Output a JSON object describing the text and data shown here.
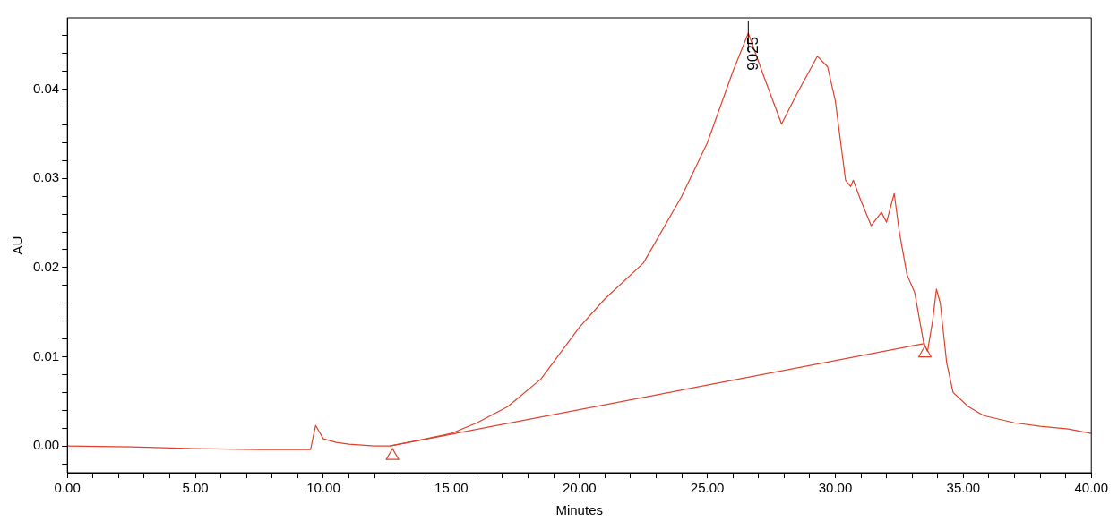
{
  "chart_data": {
    "type": "line",
    "xlabel": "Minutes",
    "ylabel": "AU",
    "xlim": [
      0,
      40
    ],
    "ylim": [
      -0.003,
      0.048
    ],
    "xticks": [
      {
        "value": 0,
        "label": "0.00"
      },
      {
        "value": 1,
        "label": null
      },
      {
        "value": 2,
        "label": null
      },
      {
        "value": 3,
        "label": null
      },
      {
        "value": 4,
        "label": null
      },
      {
        "value": 5,
        "label": "5.00"
      },
      {
        "value": 6,
        "label": null
      },
      {
        "value": 7,
        "label": null
      },
      {
        "value": 8,
        "label": null
      },
      {
        "value": 9,
        "label": null
      },
      {
        "value": 10,
        "label": "10.00"
      },
      {
        "value": 11,
        "label": null
      },
      {
        "value": 12,
        "label": null
      },
      {
        "value": 13,
        "label": null
      },
      {
        "value": 14,
        "label": null
      },
      {
        "value": 15,
        "label": "15.00"
      },
      {
        "value": 16,
        "label": null
      },
      {
        "value": 17,
        "label": null
      },
      {
        "value": 18,
        "label": null
      },
      {
        "value": 19,
        "label": null
      },
      {
        "value": 20,
        "label": "20.00"
      },
      {
        "value": 21,
        "label": null
      },
      {
        "value": 22,
        "label": null
      },
      {
        "value": 23,
        "label": null
      },
      {
        "value": 24,
        "label": null
      },
      {
        "value": 25,
        "label": "25.00"
      },
      {
        "value": 26,
        "label": null
      },
      {
        "value": 27,
        "label": null
      },
      {
        "value": 28,
        "label": null
      },
      {
        "value": 29,
        "label": null
      },
      {
        "value": 30,
        "label": "30.00"
      },
      {
        "value": 31,
        "label": null
      },
      {
        "value": 32,
        "label": null
      },
      {
        "value": 33,
        "label": null
      },
      {
        "value": 34,
        "label": null
      },
      {
        "value": 35,
        "label": "35.00"
      },
      {
        "value": 36,
        "label": null
      },
      {
        "value": 37,
        "label": null
      },
      {
        "value": 38,
        "label": null
      },
      {
        "value": 39,
        "label": null
      },
      {
        "value": 40,
        "label": "40.00"
      }
    ],
    "yticks": [
      {
        "value": -0.002,
        "label": null
      },
      {
        "value": 0,
        "label": "0.00"
      },
      {
        "value": 0.002,
        "label": null
      },
      {
        "value": 0.004,
        "label": null
      },
      {
        "value": 0.006,
        "label": null
      },
      {
        "value": 0.008,
        "label": null
      },
      {
        "value": 0.01,
        "label": "0.01"
      },
      {
        "value": 0.012,
        "label": null
      },
      {
        "value": 0.014,
        "label": null
      },
      {
        "value": 0.016,
        "label": null
      },
      {
        "value": 0.018,
        "label": null
      },
      {
        "value": 0.02,
        "label": "0.02"
      },
      {
        "value": 0.022,
        "label": null
      },
      {
        "value": 0.024,
        "label": null
      },
      {
        "value": 0.026,
        "label": null
      },
      {
        "value": 0.028,
        "label": null
      },
      {
        "value": 0.03,
        "label": "0.03"
      },
      {
        "value": 0.032,
        "label": null
      },
      {
        "value": 0.034,
        "label": null
      },
      {
        "value": 0.036,
        "label": null
      },
      {
        "value": 0.038,
        "label": null
      },
      {
        "value": 0.04,
        "label": "0.04"
      },
      {
        "value": 0.042,
        "label": null
      },
      {
        "value": 0.044,
        "label": null
      },
      {
        "value": 0.046,
        "label": null
      }
    ],
    "grid": false,
    "legend": false,
    "annotations": [
      {
        "text": "9025",
        "x": 26.6,
        "y": 0.0463
      }
    ],
    "series": [
      {
        "color": "#e0402c",
        "marker": "none",
        "x": [
          0,
          2.5,
          5,
          7.5,
          9.5,
          9.6,
          9.7,
          9.8,
          10.0,
          10.5,
          11,
          12,
          12.6,
          13.5,
          15,
          16,
          17.2,
          18.5,
          20,
          21,
          22.5,
          24,
          25,
          26,
          26.6,
          27.2,
          27.9,
          28.5,
          29.3,
          29.7,
          30.0,
          30.4,
          30.6,
          30.7,
          31.0,
          31.4,
          31.8,
          32.0,
          32.3,
          32.5,
          32.8,
          33.1,
          33.45,
          33.6,
          33.8,
          33.95,
          34.1,
          34.35,
          34.6,
          35.2,
          35.8,
          37.0,
          38.0,
          39.1,
          40
        ],
        "values": [
          0,
          -0.0001,
          -0.0003,
          -0.0004,
          -0.0004,
          0.001,
          0.0023,
          0.0018,
          0.0008,
          0.0004,
          0.0002,
          0.0,
          0.0,
          0.0005,
          0.0014,
          0.0026,
          0.0044,
          0.0075,
          0.0133,
          0.0165,
          0.0205,
          0.028,
          0.034,
          0.042,
          0.0463,
          0.0415,
          0.0361,
          0.0395,
          0.0437,
          0.0425,
          0.0387,
          0.0298,
          0.0291,
          0.0298,
          0.0275,
          0.0247,
          0.0262,
          0.0251,
          0.0283,
          0.024,
          0.0192,
          0.0172,
          0.0116,
          0.0106,
          0.014,
          0.0176,
          0.016,
          0.0093,
          0.006,
          0.0044,
          0.0034,
          0.0026,
          0.0022,
          0.0019,
          0.0014
        ]
      },
      {
        "color": "#e0402c",
        "marker": "none",
        "x": [
          12.6,
          33.5
        ],
        "values": [
          0.0,
          0.0115
        ]
      },
      {
        "type": "scatter",
        "color": "#e0402c",
        "marker": "triangle",
        "x": [
          12.7,
          33.5
        ],
        "values": [
          -0.0011,
          0.0104
        ]
      }
    ]
  }
}
